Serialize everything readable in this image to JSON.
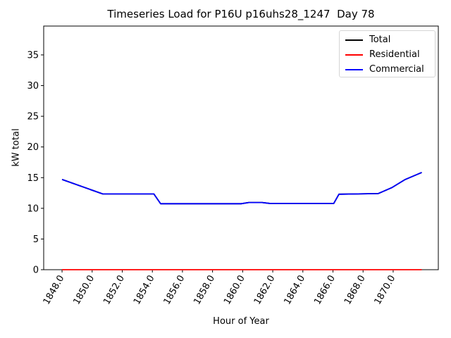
{
  "figure": {
    "background": "#ffffff"
  },
  "chart_data": {
    "type": "line",
    "title": "Timeseries Load for P16U p16uhs28_1247  Day 78",
    "xlabel": "Hour of Year",
    "ylabel": "kW total",
    "xlim": [
      1846.78,
      1873.0
    ],
    "ylim": [
      0,
      39.7
    ],
    "grid": false,
    "legend_position": "upper right",
    "xticks": [
      1848,
      1850,
      1852,
      1854,
      1856,
      1858,
      1860,
      1862,
      1864,
      1866,
      1868,
      1870
    ],
    "xtick_labels": [
      "1848.0",
      "1850.0",
      "1852.0",
      "1854.0",
      "1856.0",
      "1858.0",
      "1860.0",
      "1862.0",
      "1864.0",
      "1866.0",
      "1868.0",
      "1870.0"
    ],
    "xtick_rotation_deg": 60,
    "yticks": [
      0,
      5,
      10,
      15,
      20,
      25,
      30,
      35
    ],
    "ytick_labels": [
      "0",
      "5",
      "10",
      "15",
      "20",
      "25",
      "30",
      "35"
    ],
    "series": [
      {
        "name": "Total",
        "color": "#000000",
        "points": [
          [
            1848.0,
            14.7
          ],
          [
            1850.7,
            12.35
          ],
          [
            1854.1,
            12.35
          ],
          [
            1854.55,
            10.75
          ],
          [
            1859.9,
            10.75
          ],
          [
            1860.4,
            10.95
          ],
          [
            1861.3,
            10.95
          ],
          [
            1861.8,
            10.8
          ],
          [
            1866.05,
            10.8
          ],
          [
            1866.4,
            12.3
          ],
          [
            1869.0,
            12.4
          ],
          [
            1869.9,
            13.35
          ],
          [
            1870.8,
            14.7
          ],
          [
            1871.9,
            15.85
          ]
        ]
      },
      {
        "name": "Residential",
        "color": "#ff0000",
        "points": [
          [
            1848.0,
            0.0
          ],
          [
            1871.9,
            0.0
          ]
        ]
      },
      {
        "name": "Commercial",
        "color": "#0000ff",
        "points": [
          [
            1848.0,
            14.7
          ],
          [
            1850.7,
            12.35
          ],
          [
            1854.1,
            12.35
          ],
          [
            1854.55,
            10.75
          ],
          [
            1859.9,
            10.75
          ],
          [
            1860.4,
            10.95
          ],
          [
            1861.3,
            10.95
          ],
          [
            1861.8,
            10.8
          ],
          [
            1866.05,
            10.8
          ],
          [
            1866.4,
            12.3
          ],
          [
            1869.0,
            12.4
          ],
          [
            1869.9,
            13.35
          ],
          [
            1870.8,
            14.7
          ],
          [
            1871.9,
            15.85
          ]
        ]
      }
    ]
  }
}
